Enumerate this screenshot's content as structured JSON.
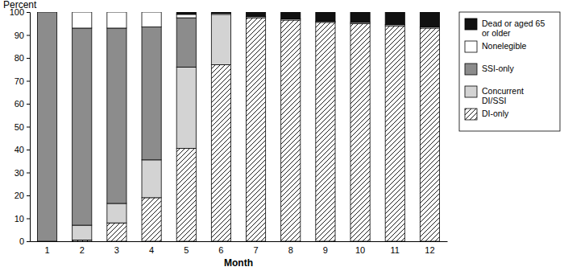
{
  "chart_data": {
    "type": "bar",
    "stacked": true,
    "y_label": "Percent",
    "x_label": "Month",
    "categories": [
      "1",
      "2",
      "3",
      "4",
      "5",
      "6",
      "7",
      "8",
      "9",
      "10",
      "11",
      "12"
    ],
    "ylim": [
      0,
      100
    ],
    "yticks": [
      0,
      10,
      20,
      30,
      40,
      50,
      60,
      70,
      80,
      90,
      100
    ],
    "grid": false,
    "legend": "right",
    "series": [
      {
        "name": "DI-only",
        "color": "#ffffff",
        "line_style": "hatch",
        "values": [
          0,
          0.5,
          8,
          19,
          40.5,
          77,
          97.5,
          96.5,
          95.5,
          95,
          94,
          93
        ]
      },
      {
        "name": "Concurrent DI/SSI",
        "color": "#d3d3d3",
        "values": [
          0,
          6.5,
          8.5,
          16.5,
          35.5,
          22,
          0,
          0,
          0,
          0,
          0,
          0
        ]
      },
      {
        "name": "SSI-only",
        "color": "#8c8c8c",
        "values": [
          100,
          86,
          76.5,
          58,
          21.5,
          0,
          0,
          0,
          0,
          0,
          0,
          0
        ]
      },
      {
        "name": "Nonelegible",
        "color": "#ffffff",
        "values": [
          0,
          7,
          7,
          6.5,
          1.5,
          0.5,
          0.5,
          0.5,
          0.5,
          0.5,
          0.5,
          0.5
        ]
      },
      {
        "name": "Dead or aged 65 or older",
        "color": "#111111",
        "values": [
          0,
          0,
          0,
          0,
          1,
          0.5,
          2,
          3,
          4,
          4.5,
          5.5,
          6.5
        ]
      }
    ]
  }
}
